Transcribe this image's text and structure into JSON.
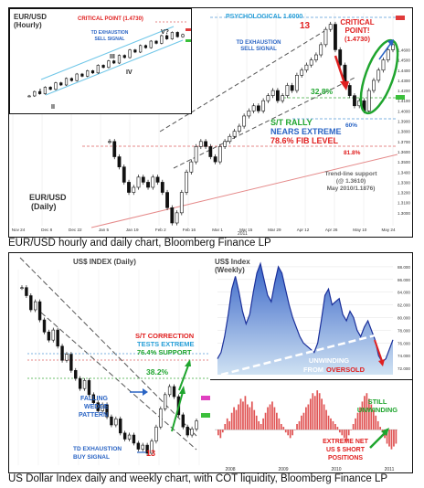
{
  "top_caption": "EUR/USD hourly and daily chart, Bloomberg Finance LP",
  "bottom_caption": "US Dollar Index daily and weekly chart, with COT liquidity, Bloomberg Finance LP",
  "chart_data": [
    {
      "id": "eurusd-daily",
      "type": "line",
      "title": "EUR/USD",
      "subtitle": "(Daily)",
      "x_ticks": [
        "Nov 24",
        "Dec 8",
        "Dec 22",
        "Jan 5",
        "Jan 19",
        "Feb 2",
        "Feb 16",
        "Mar 1",
        "Mar 15",
        "Mar 29",
        "Apr 12",
        "Apr 26",
        "May 10",
        "May 24"
      ],
      "year_label": "2011",
      "y_ticks": [
        "1.4600",
        "1.4500",
        "1.4400",
        "1.4300",
        "1.4200",
        "1.4100",
        "1.4000",
        "1.3900",
        "1.3800",
        "1.3700",
        "1.3600",
        "1.3500",
        "1.3400",
        "1.3300",
        "1.3200",
        "1.3100",
        "1.3000"
      ],
      "ylim": [
        1.29,
        1.49
      ],
      "x": [
        0,
        1,
        2,
        3,
        4,
        5,
        6,
        7,
        8,
        9,
        10,
        11,
        12,
        13,
        14,
        15,
        16,
        17,
        18,
        19,
        20,
        21,
        22,
        23,
        24,
        25,
        26,
        27,
        28,
        29,
        30,
        31,
        32,
        33,
        34,
        35,
        36,
        37,
        38,
        39,
        40,
        41,
        42,
        43,
        44,
        45,
        46,
        47,
        48,
        49,
        50,
        51,
        52,
        53,
        54,
        55,
        56,
        57,
        58,
        59
      ],
      "values": [
        1.37,
        1.355,
        1.345,
        1.33,
        1.32,
        1.325,
        1.335,
        1.33,
        1.325,
        1.335,
        1.33,
        1.32,
        1.305,
        1.29,
        1.3,
        1.32,
        1.34,
        1.35,
        1.365,
        1.37,
        1.365,
        1.355,
        1.35,
        1.365,
        1.37,
        1.375,
        1.38,
        1.385,
        1.395,
        1.4,
        1.405,
        1.4,
        1.41,
        1.415,
        1.42,
        1.41,
        1.415,
        1.425,
        1.42,
        1.435,
        1.44,
        1.445,
        1.45,
        1.455,
        1.465,
        1.48,
        1.485,
        1.46,
        1.445,
        1.425,
        1.415,
        1.405,
        1.41,
        1.4,
        1.42,
        1.43,
        1.44,
        1.45,
        1.46,
        1.465
      ],
      "annotations": {
        "psychological": "PSYCHOLOGICAL 1.6000",
        "count": "13",
        "critical": "CRITICAL POINT! (1.4730)",
        "td": "TD EXHAUSTION SELL SIGNAL",
        "pct1": "32.8%",
        "pct2": "60%",
        "pct3": "81.8%",
        "rally_1": "S/T RALLY",
        "rally_2": "NEARS EXTREME",
        "rally_3": "78.6% FIB LEVEL",
        "trend_1": "Trend-line support",
        "trend_2": "(@ 1.3610)",
        "trend_3": "May 2010/1.1876)"
      }
    },
    {
      "id": "eurusd-hourly",
      "type": "line",
      "title": "EUR/USD",
      "subtitle": "(Hourly)",
      "x": [
        0,
        1,
        2,
        3,
        4,
        5,
        6,
        7,
        8,
        9,
        10,
        11,
        12,
        13,
        14,
        15,
        16,
        17,
        18,
        19,
        20,
        21,
        22,
        23,
        24,
        25,
        26,
        27,
        28,
        29
      ],
      "values": [
        10,
        14,
        12,
        18,
        16,
        22,
        20,
        26,
        24,
        30,
        28,
        33,
        31,
        38,
        36,
        42,
        40,
        47,
        45,
        52,
        50,
        56,
        54,
        60,
        58,
        65,
        62,
        68,
        64,
        66
      ],
      "ylim": [
        0,
        75
      ],
      "waves": [
        "I",
        "II",
        "III",
        "IV",
        "V?"
      ],
      "annotations": {
        "critical": "CRITICAL POINT (1.4730)",
        "td": "TD EXHAUSTION SELL SIGNAL"
      }
    },
    {
      "id": "dxy-daily",
      "type": "line",
      "title": "US$ INDEX (Daily)",
      "x": [
        0,
        1,
        2,
        3,
        4,
        5,
        6,
        7,
        8,
        9,
        10,
        11,
        12,
        13,
        14,
        15,
        16,
        17,
        18,
        19,
        20,
        21,
        22,
        23,
        24,
        25,
        26,
        27,
        28,
        29,
        30,
        31,
        32,
        33,
        34,
        35,
        36,
        37,
        38,
        39
      ],
      "values": [
        81.2,
        80.8,
        80.1,
        80.5,
        79.6,
        79.0,
        78.6,
        79.1,
        78.3,
        77.6,
        77.9,
        77.1,
        76.7,
        76.2,
        76.6,
        75.9,
        75.5,
        75.1,
        75.4,
        74.8,
        74.4,
        74.7,
        74.0,
        73.7,
        73.9,
        73.5,
        73.2,
        73.4,
        73.0,
        73.6,
        74.3,
        75.2,
        75.9,
        76.3,
        75.8,
        74.9,
        74.3,
        73.9,
        74.2,
        74.6
      ],
      "ylim": [
        72.5,
        82.0
      ],
      "annotations": {
        "correction_1": "S/T CORRECTION",
        "correction_2": "TESTS EXTREME",
        "correction_3": "76.4% SUPPORT",
        "pct": "38.2%",
        "wedge_1": "FALLING",
        "wedge_2": "WEDGE",
        "wedge_3": "PATTERN",
        "td_1": "TD EXHAUSTION",
        "td_2": "BUY SIGNAL",
        "count": "13"
      }
    },
    {
      "id": "dxy-weekly",
      "type": "area",
      "title": "US$ Index",
      "subtitle": "(Weekly)",
      "y_ticks": [
        "88.000",
        "86.000",
        "84.000",
        "82.000",
        "80.000",
        "78.000",
        "76.000",
        "74.000",
        "72.000"
      ],
      "ylim": [
        71.0,
        89.0
      ],
      "x": [
        0,
        1,
        2,
        3,
        4,
        5,
        6,
        7,
        8,
        9,
        10,
        11,
        12,
        13,
        14,
        15,
        16,
        17,
        18,
        19,
        20,
        21,
        22,
        23,
        24,
        25,
        26,
        27,
        28,
        29,
        30,
        31,
        32,
        33,
        34,
        35,
        36,
        37,
        38,
        39,
        40,
        41,
        42,
        43,
        44,
        45,
        46,
        47,
        48,
        49
      ],
      "values": [
        73.5,
        74.5,
        77.0,
        80.5,
        84.5,
        86.5,
        84.0,
        81.0,
        79.0,
        80.5,
        84.0,
        87.0,
        88.5,
        86.0,
        83.5,
        82.5,
        85.5,
        88.0,
        87.0,
        84.5,
        82.0,
        80.0,
        78.5,
        77.0,
        76.0,
        75.5,
        75.0,
        74.5,
        76.0,
        79.5,
        83.5,
        84.5,
        82.0,
        82.5,
        83.0,
        80.5,
        79.5,
        81.0,
        80.0,
        78.0,
        77.0,
        78.5,
        79.5,
        78.0,
        76.5,
        74.0,
        73.0,
        73.5,
        75.0,
        76.5
      ],
      "annotations": {
        "unwinding_1": "UNWINDING",
        "unwinding_2": "FROM",
        "unwinding_3": "OVERSOLD"
      }
    },
    {
      "id": "dxy-cot",
      "type": "bar",
      "x_ticks": [
        "2008",
        "2009",
        "2010",
        "2011"
      ],
      "x": [
        0,
        1,
        2,
        3,
        4,
        5,
        6,
        7,
        8,
        9,
        10,
        11,
        12,
        13,
        14,
        15,
        16,
        17,
        18,
        19,
        20,
        21,
        22,
        23,
        24,
        25,
        26,
        27,
        28,
        29,
        30,
        31,
        32,
        33,
        34,
        35,
        36,
        37,
        38,
        39,
        40,
        41,
        42,
        43,
        44,
        45,
        46,
        47,
        48,
        49,
        50,
        51,
        52,
        53,
        54,
        55,
        56,
        57,
        58,
        59,
        60,
        61,
        62,
        63,
        64,
        65,
        66,
        67,
        68,
        69,
        70,
        71,
        72,
        73,
        74,
        75,
        76,
        77,
        78,
        79
      ],
      "values": [
        -2,
        -3,
        -1,
        2,
        4,
        3,
        6,
        8,
        7,
        9,
        11,
        10,
        12,
        9,
        8,
        10,
        7,
        5,
        3,
        2,
        4,
        6,
        8,
        9,
        10,
        8,
        6,
        4,
        2,
        1,
        -1,
        -2,
        -3,
        -2,
        0,
        2,
        3,
        5,
        6,
        8,
        9,
        11,
        13,
        12,
        14,
        13,
        11,
        9,
        7,
        5,
        4,
        3,
        2,
        1,
        -1,
        -2,
        -3,
        -4,
        -2,
        0,
        2,
        4,
        6,
        8,
        10,
        12,
        13,
        11,
        9,
        7,
        5,
        3,
        1,
        -1,
        -3,
        -5,
        -6,
        -7,
        -6,
        -5
      ],
      "ylim": [
        -12,
        16
      ],
      "annotations": {
        "still_1": "STILL",
        "still_2": "UNWINDING",
        "extreme_1": "EXTREME NET",
        "extreme_2": "US $ SHORT",
        "extreme_3": "POSITIONS"
      }
    }
  ]
}
